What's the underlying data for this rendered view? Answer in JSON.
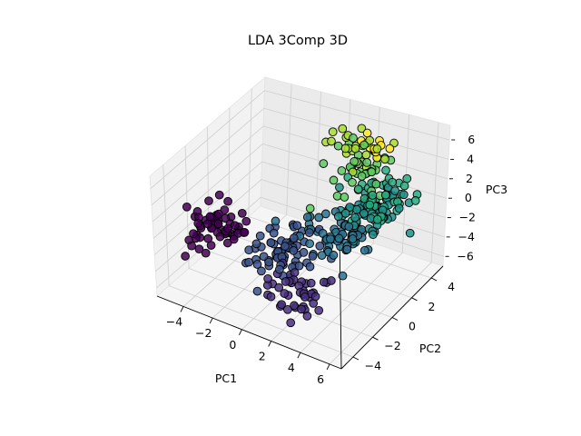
{
  "chart_data": {
    "type": "scatter",
    "projection": "3d",
    "title": "LDA 3Comp 3D",
    "xlabel": "PC1",
    "ylabel": "PC2",
    "zlabel": "PC3",
    "xlim": [
      -5.8,
      6.8
    ],
    "ylim": [
      -5.2,
      5.2
    ],
    "zlim": [
      -7,
      7.5
    ],
    "xticks": [
      -4,
      -2,
      0,
      2,
      4,
      6
    ],
    "yticks": [
      -4,
      -2,
      0,
      2,
      4
    ],
    "zticks": [
      -6,
      -4,
      -2,
      0,
      2,
      4,
      6
    ],
    "grid": true,
    "colormap": "viridis",
    "marker_edge_color": "#000000",
    "clusters": [
      {
        "color": "#440154",
        "center": [
          -4.0,
          -2.0,
          -1.0
        ],
        "n": 60
      },
      {
        "color": "#472f7d",
        "center": [
          2.5,
          -3.4,
          -3.2
        ],
        "n": 45
      },
      {
        "color": "#3b528b",
        "center": [
          0.5,
          -1.5,
          -2.0
        ],
        "n": 70
      },
      {
        "color": "#2c728e",
        "center": [
          2.8,
          0.5,
          -1.0
        ],
        "n": 65
      },
      {
        "color": "#21918c",
        "center": [
          3.5,
          2.0,
          0.5
        ],
        "n": 60
      },
      {
        "color": "#27ad81",
        "center": [
          4.0,
          3.0,
          1.5
        ],
        "n": 45
      },
      {
        "color": "#5ec962",
        "center": [
          2.0,
          3.2,
          3.0
        ],
        "n": 35
      },
      {
        "color": "#aadc32",
        "center": [
          1.5,
          3.8,
          4.0
        ],
        "n": 25
      },
      {
        "color": "#fde725",
        "center": [
          2.5,
          4.2,
          4.5
        ],
        "n": 12
      }
    ]
  }
}
